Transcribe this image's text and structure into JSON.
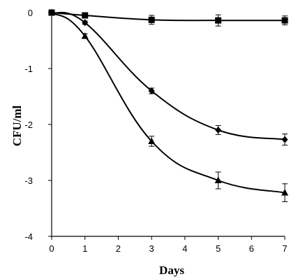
{
  "chart_data": {
    "type": "line",
    "title": "",
    "xlabel": "Days",
    "ylabel": "CFU/ml",
    "xlim": [
      0,
      7
    ],
    "ylim": [
      -4,
      0
    ],
    "xticks": [
      "0",
      "1",
      "2",
      "3",
      "4",
      "5",
      "6",
      "7"
    ],
    "yticks": [
      "0",
      "-1",
      "-2",
      "-3",
      "-4"
    ],
    "grid": false,
    "legend": "none",
    "series": [
      {
        "marker": "square",
        "color": "#000000",
        "x": [
          0,
          1,
          3,
          5,
          7
        ],
        "y": [
          0,
          -0.05,
          -0.13,
          -0.14,
          -0.14
        ],
        "error": [
          0,
          0.03,
          0.08,
          0.1,
          0.08
        ]
      },
      {
        "marker": "diamond",
        "color": "#000000",
        "x": [
          0,
          1,
          3,
          5,
          7
        ],
        "y": [
          0,
          -0.18,
          -1.4,
          -2.1,
          -2.27
        ],
        "error": [
          0,
          0.03,
          0.05,
          0.08,
          0.1
        ]
      },
      {
        "marker": "triangle",
        "color": "#000000",
        "x": [
          0,
          1,
          3,
          5,
          7
        ],
        "y": [
          0,
          -0.42,
          -2.3,
          -3.0,
          -3.22
        ],
        "error": [
          0,
          0.04,
          0.09,
          0.15,
          0.16
        ]
      }
    ]
  }
}
